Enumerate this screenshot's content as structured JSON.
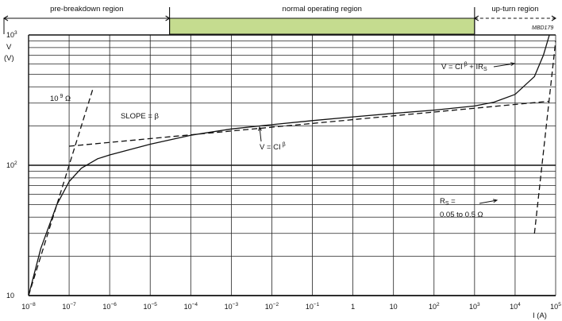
{
  "chart_data": {
    "type": "line",
    "title": "",
    "figure_code": "MBD179",
    "xlabel": "I (A)",
    "ylabel": "V",
    "ylabel_unit": "(V)",
    "xscale": "log",
    "yscale": "log",
    "xlim": [
      1e-08,
      100000
    ],
    "ylim": [
      10,
      1000
    ],
    "grid": true,
    "x_ticks": [
      {
        "value": 1e-08,
        "base": "10",
        "exp": "−8"
      },
      {
        "value": 1e-07,
        "base": "10",
        "exp": "−7"
      },
      {
        "value": 1e-06,
        "base": "10",
        "exp": "−6"
      },
      {
        "value": 1e-05,
        "base": "10",
        "exp": "−5"
      },
      {
        "value": 0.0001,
        "base": "10",
        "exp": "−4"
      },
      {
        "value": 0.001,
        "base": "10",
        "exp": "−3"
      },
      {
        "value": 0.01,
        "base": "10",
        "exp": "−2"
      },
      {
        "value": 0.1,
        "base": "10",
        "exp": "−1"
      },
      {
        "value": 1,
        "base": "1",
        "exp": ""
      },
      {
        "value": 10,
        "base": "10",
        "exp": ""
      },
      {
        "value": 100,
        "base": "10",
        "exp": "2"
      },
      {
        "value": 1000,
        "base": "10",
        "exp": "3"
      },
      {
        "value": 10000,
        "base": "10",
        "exp": "4"
      },
      {
        "value": 100000,
        "base": "10",
        "exp": "5"
      }
    ],
    "y_ticks": [
      {
        "value": 10,
        "base": "10",
        "exp": ""
      },
      {
        "value": 100,
        "base": "10",
        "exp": "2"
      },
      {
        "value": 1000,
        "base": "10",
        "exp": "3"
      }
    ],
    "regions": [
      {
        "label": "pre-breakdown region",
        "from": 1e-08,
        "to": 3e-05
      },
      {
        "label": "normal operating region",
        "from": 3e-05,
        "to": 1000,
        "fill": "#c5dc8f"
      },
      {
        "label": "up-turn region",
        "from": 1000,
        "to": 100000
      }
    ],
    "series": [
      {
        "role": "characteristic",
        "style": "solid",
        "points": [
          [
            1e-08,
            10
          ],
          [
            2e-08,
            23
          ],
          [
            5e-08,
            50
          ],
          [
            1e-07,
            75
          ],
          [
            2e-07,
            95
          ],
          [
            5e-07,
            112
          ],
          [
            1e-06,
            120
          ],
          [
            1e-05,
            145
          ],
          [
            0.0001,
            170
          ],
          [
            0.001,
            190
          ],
          [
            0.01,
            205
          ],
          [
            0.1,
            220
          ],
          [
            1,
            235
          ],
          [
            10,
            250
          ],
          [
            100,
            265
          ],
          [
            1000,
            285
          ],
          [
            3000,
            305
          ],
          [
            10000,
            350
          ],
          [
            30000,
            480
          ],
          [
            50000,
            700
          ],
          [
            70000,
            1000
          ]
        ]
      },
      {
        "role": "asymptote V = CI^beta",
        "style": "dashed",
        "points": [
          [
            1e-07,
            140
          ],
          [
            70000,
            310
          ]
        ]
      },
      {
        "role": "1e9 ohm line",
        "style": "dashed",
        "points": [
          [
            1e-08,
            10
          ],
          [
            4e-07,
            400
          ]
        ]
      },
      {
        "role": "Rs up-turn line",
        "style": "dashed",
        "points": [
          [
            30000,
            30
          ],
          [
            100000,
            900
          ]
        ]
      }
    ],
    "annotations": [
      {
        "id": "slope",
        "text": "SLOPE = β"
      },
      {
        "id": "vci",
        "text": "V = CI",
        "sup": "β"
      },
      {
        "id": "vcirs",
        "text": "V = CI",
        "sup": "β",
        "tail": "+ IR",
        "sub": "S"
      },
      {
        "id": "r109",
        "text": "10",
        "sup": "9",
        "tail": "Ω"
      },
      {
        "id": "rs1",
        "text": "R",
        "sub": "S",
        "tail": " ="
      },
      {
        "id": "rs2",
        "text": "0.05 to 0.5 Ω"
      }
    ]
  }
}
